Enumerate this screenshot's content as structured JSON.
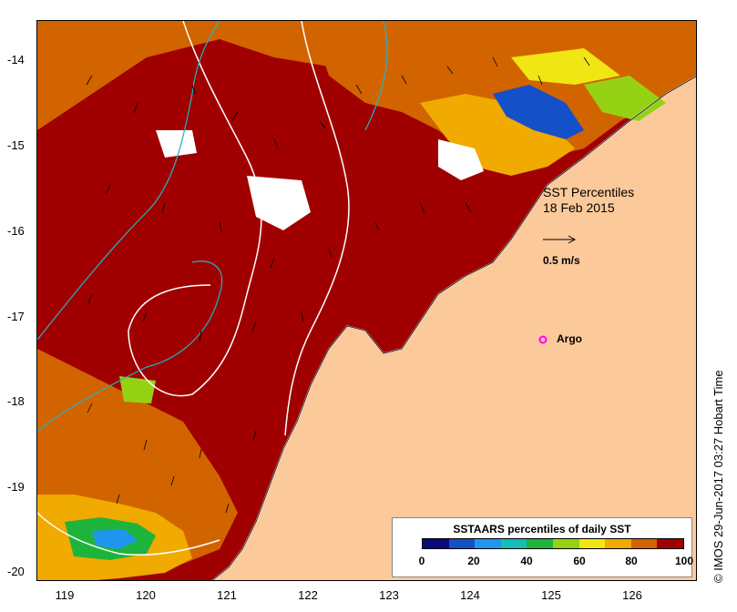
{
  "title": "SST Percentiles",
  "date": "18 Feb 2015",
  "scale_label": "0.5 m/s",
  "argo_label": "Argo",
  "legend": {
    "title": "SSTAARS percentiles of daily SST",
    "ticks": [
      "0",
      "20",
      "40",
      "60",
      "80",
      "100"
    ],
    "colors": [
      "#0a0a7a",
      "#1450c8",
      "#1e96f0",
      "#14beb4",
      "#1eb43c",
      "#96d214",
      "#f0e614",
      "#f0aa00",
      "#d26400",
      "#a00000"
    ]
  },
  "credit": "© IMOS 29-Jun-2017 03:27 Hobart Time",
  "axes": {
    "x_ticks": [
      "119",
      "120",
      "121",
      "122",
      "123",
      "124",
      "125",
      "126"
    ],
    "y_ticks": [
      "-14",
      "-15",
      "-16",
      "-17",
      "-18",
      "-19",
      "-20"
    ]
  },
  "colors": {
    "land": "#fcc99b",
    "ocean_dark": "#a00000",
    "ocean_mid": "#d26400",
    "argo_marker": "#ff00ff",
    "contour_white": "#ffffff",
    "contour_cyan": "#22b2c8"
  }
}
